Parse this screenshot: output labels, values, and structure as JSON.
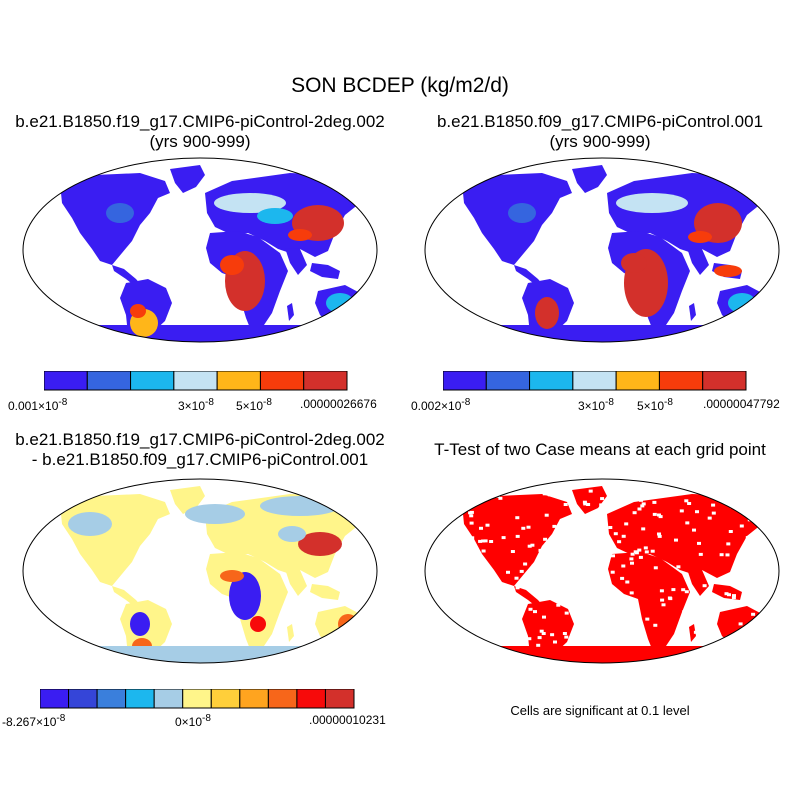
{
  "figure": {
    "title": "SON BCDEP (kg/m2/d)"
  },
  "panels": {
    "top_left": {
      "title_line1": "b.e21.B1850.f19_g17.CMIP6-piControl-2deg.002",
      "title_line2": "(yrs 900-999)",
      "colorbar": {
        "colors": [
          "#3a1df2",
          "#3565df",
          "#1cb7ee",
          "#c4e3f3",
          "#ffb619",
          "#f73c0b",
          "#d3302b"
        ],
        "labels": [
          "0.001×10",
          "3×10",
          "5×10",
          ".00000026676"
        ],
        "exponent": "-8"
      }
    },
    "top_right": {
      "title_line1": "b.e21.B1850.f09_g17.CMIP6-piControl.001",
      "title_line2": "(yrs 900-999)",
      "colorbar": {
        "colors": [
          "#3a1df2",
          "#3565df",
          "#1cb7ee",
          "#c4e3f3",
          "#ffb619",
          "#f73c0b",
          "#d3302b"
        ],
        "labels": [
          "0.002×10",
          "3×10",
          "5×10",
          ".00000047792"
        ],
        "exponent": "-8"
      }
    },
    "bottom_left": {
      "title_line1": "b.e21.B1850.f19_g17.CMIP6-piControl-2deg.002",
      "title_line2": "- b.e21.B1850.f09_g17.CMIP6-piControl.001",
      "colorbar": {
        "colors": [
          "#3a1df2",
          "#3545d8",
          "#3a7fdc",
          "#1cb7ee",
          "#a6cde6",
          "#fff58a",
          "#ffcf3a",
          "#ffa41f",
          "#f7661a",
          "#f70a0a",
          "#d3302b"
        ],
        "labels": [
          "-8.267×10",
          "0×10",
          ".00000010231"
        ],
        "exponent": "-8"
      }
    },
    "bottom_right": {
      "title": "T-Test of two Case means at each grid point",
      "note": "Cells are significant at 0.1 level",
      "significance_color": "#ff0000"
    }
  }
}
